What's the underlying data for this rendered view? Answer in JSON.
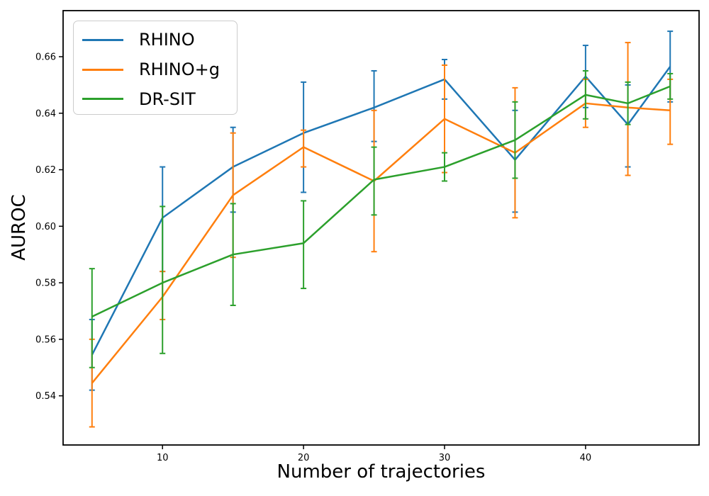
{
  "figure": {
    "background": "#ffffff"
  },
  "chart_data": {
    "type": "line",
    "title": "",
    "xlabel": "Number of trajectories",
    "ylabel": "AUROC",
    "grid": false,
    "legend_position": "upper left",
    "xlim": [
      2.95,
      48.05
    ],
    "ylim": [
      0.5226,
      0.6763
    ],
    "x_ticks": [
      10,
      20,
      30,
      40
    ],
    "y_ticks": [
      0.54,
      0.56,
      0.58,
      0.6,
      0.62,
      0.64,
      0.66
    ],
    "x": [
      5,
      10,
      15,
      20,
      25,
      30,
      35,
      40,
      43,
      46
    ],
    "series": [
      {
        "name": "RHINO",
        "color": "#1f77b4",
        "values": [
          0.5545,
          0.603,
          0.621,
          0.633,
          0.642,
          0.652,
          0.6235,
          0.653,
          0.636,
          0.6565
        ],
        "err_low": [
          0.542,
          0.584,
          0.605,
          0.612,
          0.63,
          0.645,
          0.605,
          0.642,
          0.621,
          0.644
        ],
        "err_high": [
          0.567,
          0.621,
          0.635,
          0.651,
          0.655,
          0.659,
          0.641,
          0.664,
          0.65,
          0.669
        ]
      },
      {
        "name": "RHINO+g",
        "color": "#ff7f0e",
        "values": [
          0.5445,
          0.575,
          0.611,
          0.628,
          0.616,
          0.638,
          0.626,
          0.6435,
          0.642,
          0.641
        ],
        "err_low": [
          0.529,
          0.567,
          0.589,
          0.621,
          0.591,
          0.619,
          0.603,
          0.635,
          0.618,
          0.629
        ],
        "err_high": [
          0.56,
          0.584,
          0.633,
          0.634,
          0.641,
          0.657,
          0.649,
          0.652,
          0.665,
          0.652
        ]
      },
      {
        "name": "DR-SIT",
        "color": "#2ca02c",
        "values": [
          0.568,
          0.58,
          0.59,
          0.594,
          0.6165,
          0.621,
          0.6305,
          0.6465,
          0.6435,
          0.6495
        ],
        "err_low": [
          0.55,
          0.555,
          0.572,
          0.578,
          0.604,
          0.616,
          0.617,
          0.638,
          0.636,
          0.645
        ],
        "err_high": [
          0.585,
          0.607,
          0.608,
          0.609,
          0.628,
          0.626,
          0.644,
          0.655,
          0.651,
          0.654
        ]
      }
    ]
  }
}
